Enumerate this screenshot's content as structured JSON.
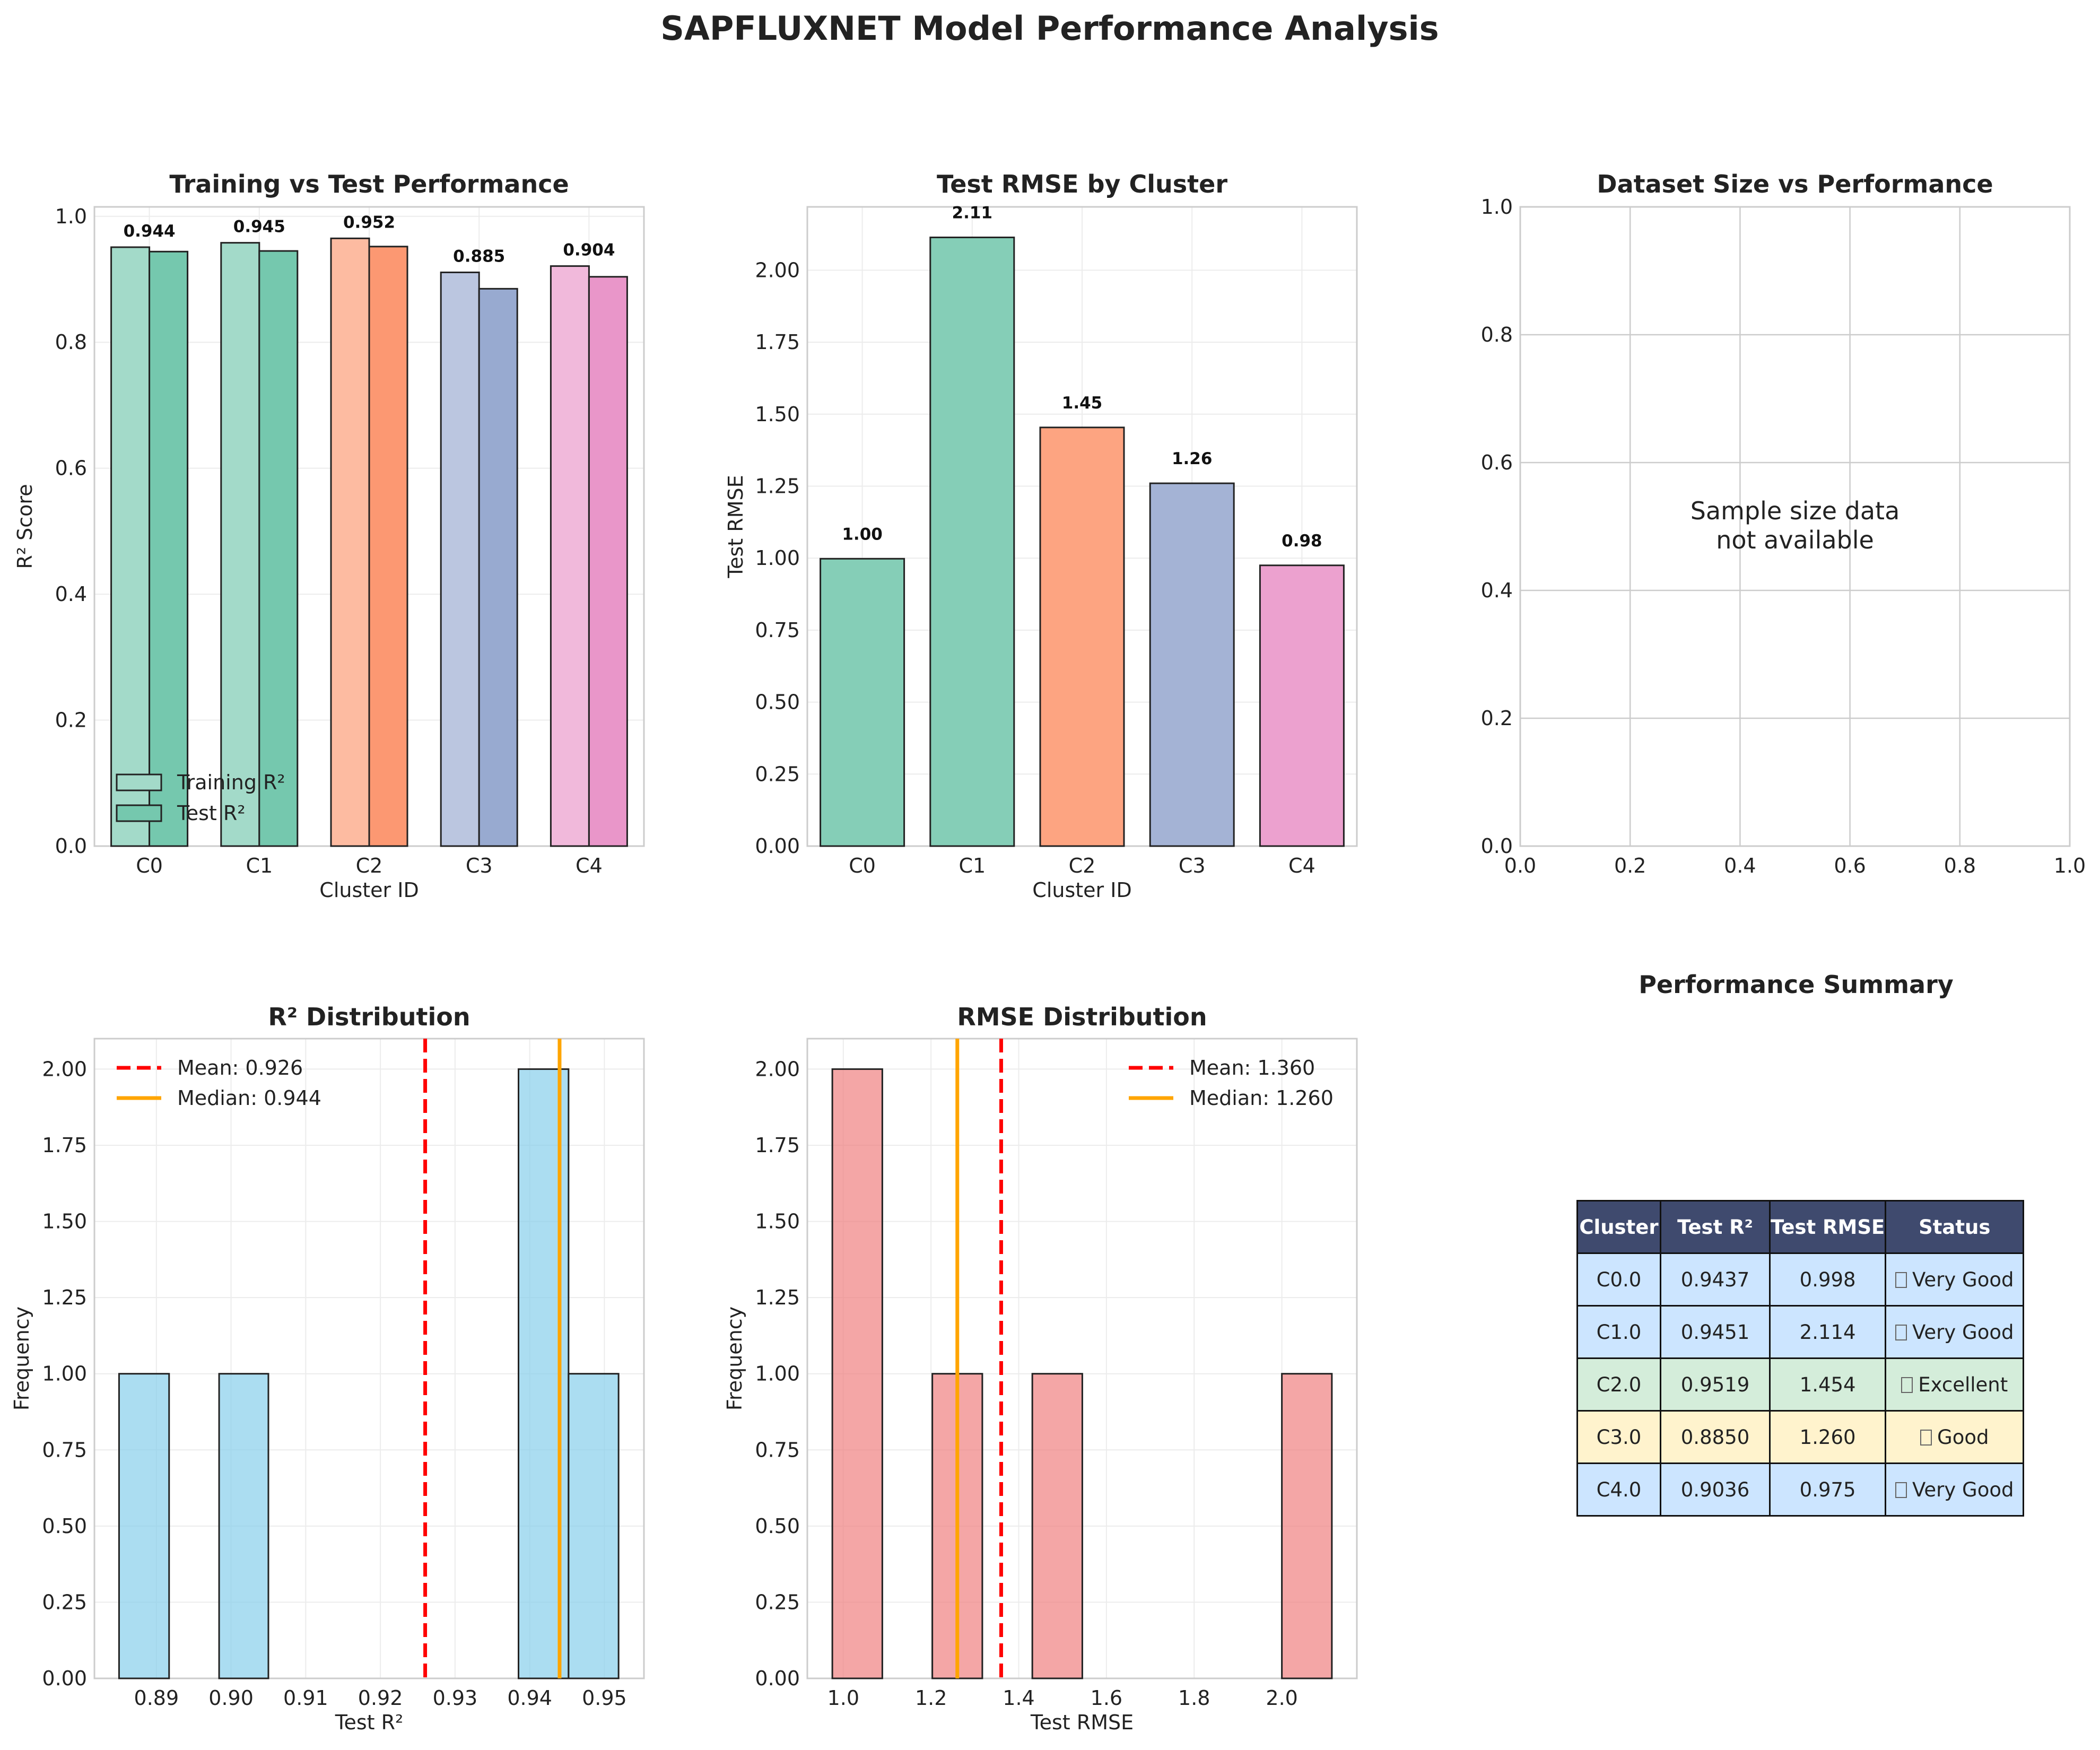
{
  "title": "SAPFLUXNET Model Performance Analysis",
  "colors": {
    "palette": [
      "#66c2a5",
      "#66c2a5",
      "#fc8d62",
      "#8da0cb",
      "#e78ac3"
    ],
    "hist_r2": "#87ceeb",
    "hist_rmse": "#f08080",
    "mean_line": "#ff0000",
    "median_line": "#ffa500",
    "table_header": "#3f4a6e",
    "status_very_good": "#cce5ff",
    "status_excellent": "#d4edda",
    "status_good": "#fff3cd"
  },
  "chart_data": [
    {
      "type": "bar",
      "title": "Training vs Test Performance",
      "xlabel": "Cluster ID",
      "ylabel": "R² Score",
      "categories": [
        "C0",
        "C1",
        "C2",
        "C3",
        "C4"
      ],
      "series": [
        {
          "name": "Training R²",
          "values": [
            0.951,
            0.958,
            0.965,
            0.911,
            0.921
          ]
        },
        {
          "name": "Test R²",
          "values": [
            0.944,
            0.945,
            0.952,
            0.885,
            0.904
          ]
        }
      ],
      "data_labels": [
        "0.944",
        "0.945",
        "0.952",
        "0.885",
        "0.904"
      ],
      "ylim": [
        0,
        1.015
      ],
      "yticks": [
        "0.0",
        "0.2",
        "0.4",
        "0.6",
        "0.8",
        "1.0"
      ],
      "grid": true,
      "legend": "lower-left"
    },
    {
      "type": "bar",
      "title": "Test RMSE by Cluster",
      "xlabel": "Cluster ID",
      "ylabel": "Test RMSE",
      "categories": [
        "C0",
        "C1",
        "C2",
        "C3",
        "C4"
      ],
      "values": [
        0.998,
        2.114,
        1.454,
        1.26,
        0.975
      ],
      "data_labels": [
        "1.00",
        "2.11",
        "1.45",
        "1.26",
        "0.98"
      ],
      "ylim": [
        0,
        2.22
      ],
      "yticks": [
        "0.00",
        "0.25",
        "0.50",
        "0.75",
        "1.00",
        "1.25",
        "1.50",
        "1.75",
        "2.00"
      ],
      "grid": true
    },
    {
      "type": "scatter",
      "title": "Dataset Size vs Performance",
      "annotation": [
        "Sample size data",
        "not available"
      ],
      "xlim": [
        0,
        1
      ],
      "ylim": [
        0,
        1
      ],
      "xticks": [
        "0.0",
        "0.2",
        "0.4",
        "0.6",
        "0.8",
        "1.0"
      ],
      "yticks": [
        "0.0",
        "0.2",
        "0.4",
        "0.6",
        "0.8",
        "1.0"
      ],
      "grid": true
    },
    {
      "type": "bar",
      "subtype": "histogram",
      "title": "R² Distribution",
      "xlabel": "Test R²",
      "ylabel": "Frequency",
      "bin_edges": [
        0.885,
        0.8917,
        0.8984,
        0.905,
        0.9117,
        0.9184,
        0.9251,
        0.9318,
        0.9385,
        0.9452,
        0.9519
      ],
      "counts": [
        1,
        0,
        1,
        0,
        0,
        0,
        0,
        0,
        2,
        1
      ],
      "xlim": [
        0.8817,
        0.9553
      ],
      "ylim": [
        0,
        2.1
      ],
      "xticks": [
        "0.89",
        "0.90",
        "0.91",
        "0.92",
        "0.93",
        "0.94",
        "0.95"
      ],
      "yticks": [
        "0.00",
        "0.25",
        "0.50",
        "0.75",
        "1.00",
        "1.25",
        "1.50",
        "1.75",
        "2.00"
      ],
      "mean": 0.926,
      "median": 0.944,
      "legend_entries": [
        "Mean: 0.926",
        "Median: 0.944"
      ],
      "grid": true,
      "legend": "top-left"
    },
    {
      "type": "bar",
      "subtype": "histogram",
      "title": "RMSE Distribution",
      "xlabel": "Test RMSE",
      "ylabel": "Frequency",
      "bin_edges": [
        0.975,
        1.089,
        1.203,
        1.317,
        1.431,
        1.545,
        1.658,
        1.772,
        1.886,
        2.0,
        2.114
      ],
      "counts": [
        2,
        0,
        1,
        0,
        1,
        0,
        0,
        0,
        0,
        1
      ],
      "xlim": [
        0.918,
        2.171
      ],
      "ylim": [
        0,
        2.1
      ],
      "xticks": [
        "1.0",
        "1.2",
        "1.4",
        "1.6",
        "1.8",
        "2.0"
      ],
      "yticks": [
        "0.00",
        "0.25",
        "0.50",
        "0.75",
        "1.00",
        "1.25",
        "1.50",
        "1.75",
        "2.00"
      ],
      "mean": 1.36,
      "median": 1.26,
      "legend_entries": [
        "Mean: 1.360",
        "Median: 1.260"
      ],
      "grid": true,
      "legend": "top-right"
    },
    {
      "type": "table",
      "title": "Performance Summary",
      "columns": [
        "Cluster",
        "Test R²",
        "Test RMSE",
        "Status"
      ],
      "rows": [
        {
          "cells": [
            "C0.0",
            "0.9437",
            "0.998",
            "Very Good"
          ],
          "status": "very_good"
        },
        {
          "cells": [
            "C1.0",
            "0.9451",
            "2.114",
            "Very Good"
          ],
          "status": "very_good"
        },
        {
          "cells": [
            "C2.0",
            "0.9519",
            "1.454",
            "Excellent"
          ],
          "status": "excellent"
        },
        {
          "cells": [
            "C3.0",
            "0.8850",
            "1.260",
            "Good"
          ],
          "status": "good"
        },
        {
          "cells": [
            "C4.0",
            "0.9036",
            "0.975",
            "Very Good"
          ],
          "status": "very_good"
        }
      ]
    }
  ]
}
